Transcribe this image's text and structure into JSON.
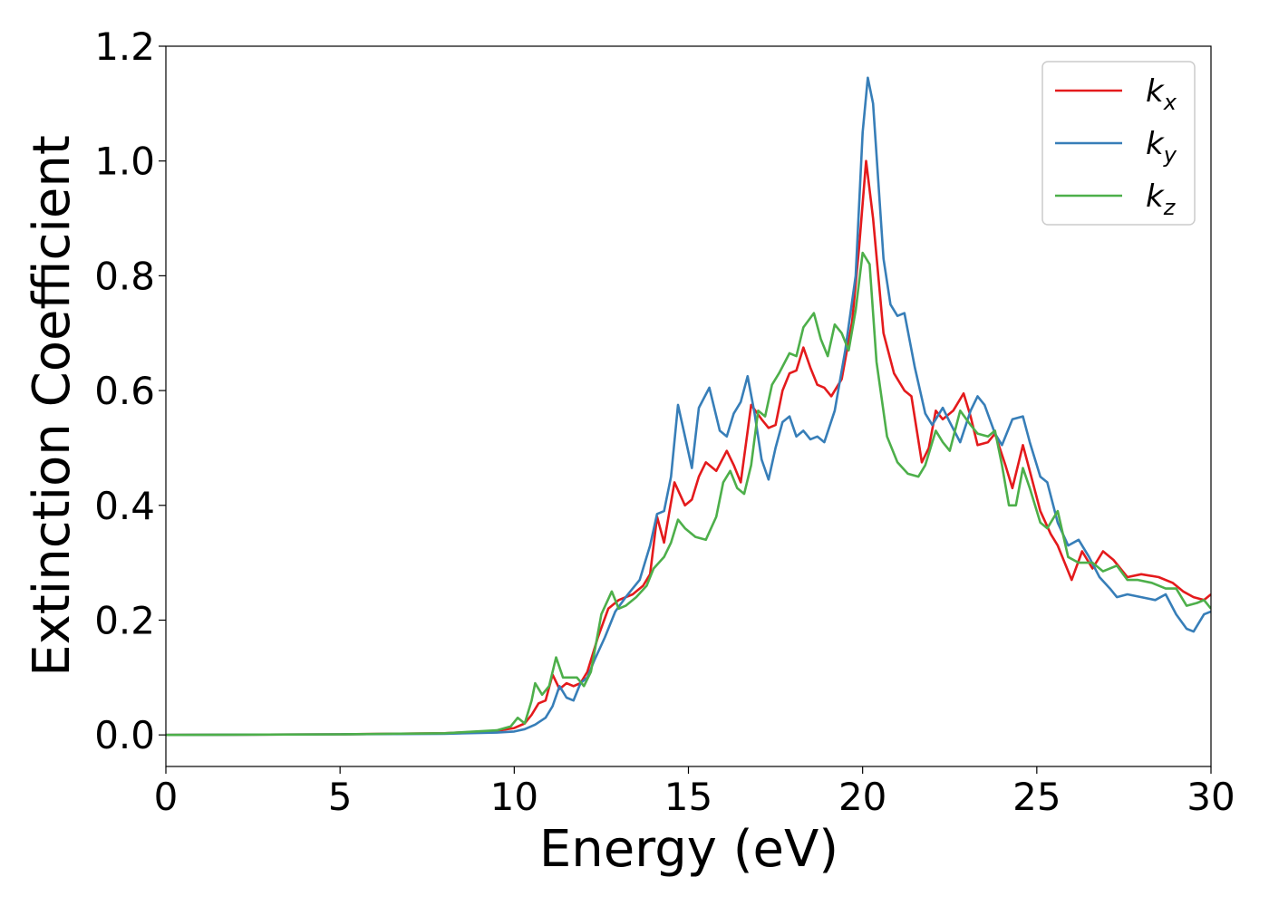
{
  "chart_data": {
    "type": "line",
    "xlabel": "Energy (eV)",
    "ylabel": "Extinction Coefficient",
    "xlim": [
      0,
      30
    ],
    "ylim": [
      -0.055,
      1.2
    ],
    "xticks": [
      0,
      5,
      10,
      15,
      20,
      25,
      30
    ],
    "xtick_labels": [
      "0",
      "5",
      "10",
      "15",
      "20",
      "25",
      "30"
    ],
    "yticks": [
      0.0,
      0.2,
      0.4,
      0.6,
      0.8,
      1.0,
      1.2
    ],
    "ytick_labels": [
      "0.0",
      "0.2",
      "0.4",
      "0.6",
      "0.8",
      "1.0",
      "1.2"
    ],
    "grid": false,
    "legend_position": "top-right",
    "series": [
      {
        "name": "kx",
        "legend_base": "k",
        "legend_sub": "x",
        "color": "#e41a1c",
        "points": [
          [
            0,
            0
          ],
          [
            5,
            0.001
          ],
          [
            8,
            0.003
          ],
          [
            9.5,
            0.007
          ],
          [
            10,
            0.012
          ],
          [
            10.3,
            0.02
          ],
          [
            10.5,
            0.035
          ],
          [
            10.7,
            0.055
          ],
          [
            10.9,
            0.06
          ],
          [
            11.1,
            0.105
          ],
          [
            11.3,
            0.08
          ],
          [
            11.5,
            0.09
          ],
          [
            11.7,
            0.085
          ],
          [
            11.9,
            0.09
          ],
          [
            12.1,
            0.11
          ],
          [
            12.4,
            0.17
          ],
          [
            12.7,
            0.22
          ],
          [
            13,
            0.235
          ],
          [
            13.4,
            0.245
          ],
          [
            13.7,
            0.26
          ],
          [
            13.9,
            0.28
          ],
          [
            14.1,
            0.38
          ],
          [
            14.3,
            0.335
          ],
          [
            14.6,
            0.44
          ],
          [
            14.9,
            0.4
          ],
          [
            15.1,
            0.41
          ],
          [
            15.3,
            0.45
          ],
          [
            15.5,
            0.475
          ],
          [
            15.8,
            0.46
          ],
          [
            16.1,
            0.495
          ],
          [
            16.3,
            0.47
          ],
          [
            16.5,
            0.44
          ],
          [
            16.8,
            0.575
          ],
          [
            17.1,
            0.55
          ],
          [
            17.3,
            0.535
          ],
          [
            17.5,
            0.54
          ],
          [
            17.7,
            0.6
          ],
          [
            17.9,
            0.63
          ],
          [
            18.1,
            0.635
          ],
          [
            18.3,
            0.675
          ],
          [
            18.5,
            0.64
          ],
          [
            18.7,
            0.61
          ],
          [
            18.9,
            0.605
          ],
          [
            19.1,
            0.59
          ],
          [
            19.4,
            0.62
          ],
          [
            19.7,
            0.72
          ],
          [
            19.9,
            0.85
          ],
          [
            20.1,
            1.0
          ],
          [
            20.3,
            0.9
          ],
          [
            20.6,
            0.7
          ],
          [
            20.9,
            0.63
          ],
          [
            21.2,
            0.6
          ],
          [
            21.4,
            0.59
          ],
          [
            21.7,
            0.475
          ],
          [
            21.9,
            0.5
          ],
          [
            22.1,
            0.565
          ],
          [
            22.3,
            0.55
          ],
          [
            22.6,
            0.565
          ],
          [
            22.9,
            0.595
          ],
          [
            23.1,
            0.555
          ],
          [
            23.3,
            0.505
          ],
          [
            23.6,
            0.51
          ],
          [
            23.8,
            0.525
          ],
          [
            24.1,
            0.47
          ],
          [
            24.3,
            0.43
          ],
          [
            24.6,
            0.505
          ],
          [
            24.8,
            0.46
          ],
          [
            25.1,
            0.39
          ],
          [
            25.4,
            0.35
          ],
          [
            25.6,
            0.33
          ],
          [
            25.8,
            0.3
          ],
          [
            26,
            0.27
          ],
          [
            26.3,
            0.32
          ],
          [
            26.6,
            0.29
          ],
          [
            26.9,
            0.32
          ],
          [
            27.2,
            0.305
          ],
          [
            27.6,
            0.275
          ],
          [
            28,
            0.28
          ],
          [
            28.5,
            0.275
          ],
          [
            28.9,
            0.265
          ],
          [
            29.2,
            0.25
          ],
          [
            29.5,
            0.24
          ],
          [
            29.8,
            0.235
          ],
          [
            30,
            0.245
          ]
        ]
      },
      {
        "name": "ky",
        "legend_base": "k",
        "legend_sub": "y",
        "color": "#377eb8",
        "points": [
          [
            0,
            0
          ],
          [
            5,
            0.001
          ],
          [
            8,
            0.002
          ],
          [
            9.5,
            0.004
          ],
          [
            10,
            0.006
          ],
          [
            10.3,
            0.01
          ],
          [
            10.6,
            0.018
          ],
          [
            10.9,
            0.03
          ],
          [
            11.1,
            0.05
          ],
          [
            11.3,
            0.085
          ],
          [
            11.5,
            0.065
          ],
          [
            11.7,
            0.06
          ],
          [
            11.9,
            0.09
          ],
          [
            12.1,
            0.1
          ],
          [
            12.3,
            0.13
          ],
          [
            12.6,
            0.17
          ],
          [
            12.9,
            0.215
          ],
          [
            13.2,
            0.24
          ],
          [
            13.6,
            0.27
          ],
          [
            13.9,
            0.33
          ],
          [
            14.1,
            0.385
          ],
          [
            14.3,
            0.39
          ],
          [
            14.5,
            0.45
          ],
          [
            14.7,
            0.575
          ],
          [
            14.9,
            0.52
          ],
          [
            15.1,
            0.465
          ],
          [
            15.3,
            0.57
          ],
          [
            15.6,
            0.605
          ],
          [
            15.9,
            0.53
          ],
          [
            16.1,
            0.52
          ],
          [
            16.3,
            0.56
          ],
          [
            16.5,
            0.58
          ],
          [
            16.7,
            0.625
          ],
          [
            16.9,
            0.56
          ],
          [
            17.1,
            0.48
          ],
          [
            17.3,
            0.445
          ],
          [
            17.5,
            0.5
          ],
          [
            17.7,
            0.545
          ],
          [
            17.9,
            0.555
          ],
          [
            18.1,
            0.52
          ],
          [
            18.3,
            0.53
          ],
          [
            18.5,
            0.515
          ],
          [
            18.7,
            0.52
          ],
          [
            18.9,
            0.51
          ],
          [
            19.2,
            0.565
          ],
          [
            19.5,
            0.67
          ],
          [
            19.8,
            0.8
          ],
          [
            20,
            1.05
          ],
          [
            20.15,
            1.145
          ],
          [
            20.3,
            1.1
          ],
          [
            20.6,
            0.83
          ],
          [
            20.8,
            0.75
          ],
          [
            21,
            0.73
          ],
          [
            21.2,
            0.735
          ],
          [
            21.5,
            0.64
          ],
          [
            21.8,
            0.56
          ],
          [
            22,
            0.54
          ],
          [
            22.3,
            0.57
          ],
          [
            22.5,
            0.545
          ],
          [
            22.8,
            0.51
          ],
          [
            23.1,
            0.565
          ],
          [
            23.3,
            0.59
          ],
          [
            23.5,
            0.575
          ],
          [
            23.8,
            0.525
          ],
          [
            24,
            0.505
          ],
          [
            24.3,
            0.55
          ],
          [
            24.6,
            0.555
          ],
          [
            24.8,
            0.51
          ],
          [
            25.1,
            0.45
          ],
          [
            25.3,
            0.44
          ],
          [
            25.6,
            0.37
          ],
          [
            25.9,
            0.33
          ],
          [
            26.2,
            0.34
          ],
          [
            26.5,
            0.31
          ],
          [
            26.8,
            0.275
          ],
          [
            27.1,
            0.255
          ],
          [
            27.3,
            0.24
          ],
          [
            27.6,
            0.245
          ],
          [
            28,
            0.24
          ],
          [
            28.4,
            0.235
          ],
          [
            28.7,
            0.245
          ],
          [
            29,
            0.21
          ],
          [
            29.3,
            0.185
          ],
          [
            29.5,
            0.18
          ],
          [
            29.8,
            0.21
          ],
          [
            30,
            0.215
          ]
        ]
      },
      {
        "name": "kz",
        "legend_base": "k",
        "legend_sub": "z",
        "color": "#4daf4a",
        "points": [
          [
            0,
            0
          ],
          [
            5,
            0.001
          ],
          [
            8,
            0.003
          ],
          [
            9.5,
            0.008
          ],
          [
            9.9,
            0.015
          ],
          [
            10.1,
            0.03
          ],
          [
            10.3,
            0.02
          ],
          [
            10.5,
            0.06
          ],
          [
            10.6,
            0.09
          ],
          [
            10.8,
            0.07
          ],
          [
            11,
            0.085
          ],
          [
            11.2,
            0.135
          ],
          [
            11.4,
            0.1
          ],
          [
            11.6,
            0.1
          ],
          [
            11.8,
            0.1
          ],
          [
            12,
            0.085
          ],
          [
            12.2,
            0.11
          ],
          [
            12.5,
            0.21
          ],
          [
            12.8,
            0.25
          ],
          [
            13,
            0.22
          ],
          [
            13.2,
            0.225
          ],
          [
            13.5,
            0.24
          ],
          [
            13.8,
            0.26
          ],
          [
            14,
            0.29
          ],
          [
            14.3,
            0.31
          ],
          [
            14.5,
            0.335
          ],
          [
            14.7,
            0.375
          ],
          [
            14.9,
            0.36
          ],
          [
            15.2,
            0.345
          ],
          [
            15.5,
            0.34
          ],
          [
            15.8,
            0.38
          ],
          [
            16,
            0.44
          ],
          [
            16.2,
            0.46
          ],
          [
            16.4,
            0.43
          ],
          [
            16.6,
            0.42
          ],
          [
            16.8,
            0.47
          ],
          [
            17,
            0.565
          ],
          [
            17.2,
            0.555
          ],
          [
            17.4,
            0.61
          ],
          [
            17.6,
            0.63
          ],
          [
            17.9,
            0.665
          ],
          [
            18.1,
            0.66
          ],
          [
            18.3,
            0.71
          ],
          [
            18.6,
            0.735
          ],
          [
            18.8,
            0.69
          ],
          [
            19,
            0.66
          ],
          [
            19.2,
            0.715
          ],
          [
            19.4,
            0.7
          ],
          [
            19.6,
            0.67
          ],
          [
            19.8,
            0.74
          ],
          [
            20,
            0.84
          ],
          [
            20.2,
            0.82
          ],
          [
            20.4,
            0.65
          ],
          [
            20.7,
            0.52
          ],
          [
            21,
            0.475
          ],
          [
            21.3,
            0.455
          ],
          [
            21.6,
            0.45
          ],
          [
            21.8,
            0.47
          ],
          [
            22.1,
            0.53
          ],
          [
            22.3,
            0.51
          ],
          [
            22.5,
            0.495
          ],
          [
            22.8,
            0.565
          ],
          [
            23.1,
            0.54
          ],
          [
            23.3,
            0.525
          ],
          [
            23.6,
            0.52
          ],
          [
            23.8,
            0.53
          ],
          [
            24,
            0.47
          ],
          [
            24.2,
            0.4
          ],
          [
            24.4,
            0.4
          ],
          [
            24.6,
            0.465
          ],
          [
            24.8,
            0.43
          ],
          [
            25.1,
            0.37
          ],
          [
            25.3,
            0.36
          ],
          [
            25.6,
            0.39
          ],
          [
            25.9,
            0.31
          ],
          [
            26.2,
            0.3
          ],
          [
            26.6,
            0.3
          ],
          [
            26.9,
            0.285
          ],
          [
            27.3,
            0.295
          ],
          [
            27.6,
            0.27
          ],
          [
            27.9,
            0.27
          ],
          [
            28.3,
            0.265
          ],
          [
            28.7,
            0.255
          ],
          [
            29,
            0.255
          ],
          [
            29.3,
            0.225
          ],
          [
            29.6,
            0.23
          ],
          [
            29.8,
            0.235
          ],
          [
            30,
            0.22
          ]
        ]
      }
    ]
  }
}
